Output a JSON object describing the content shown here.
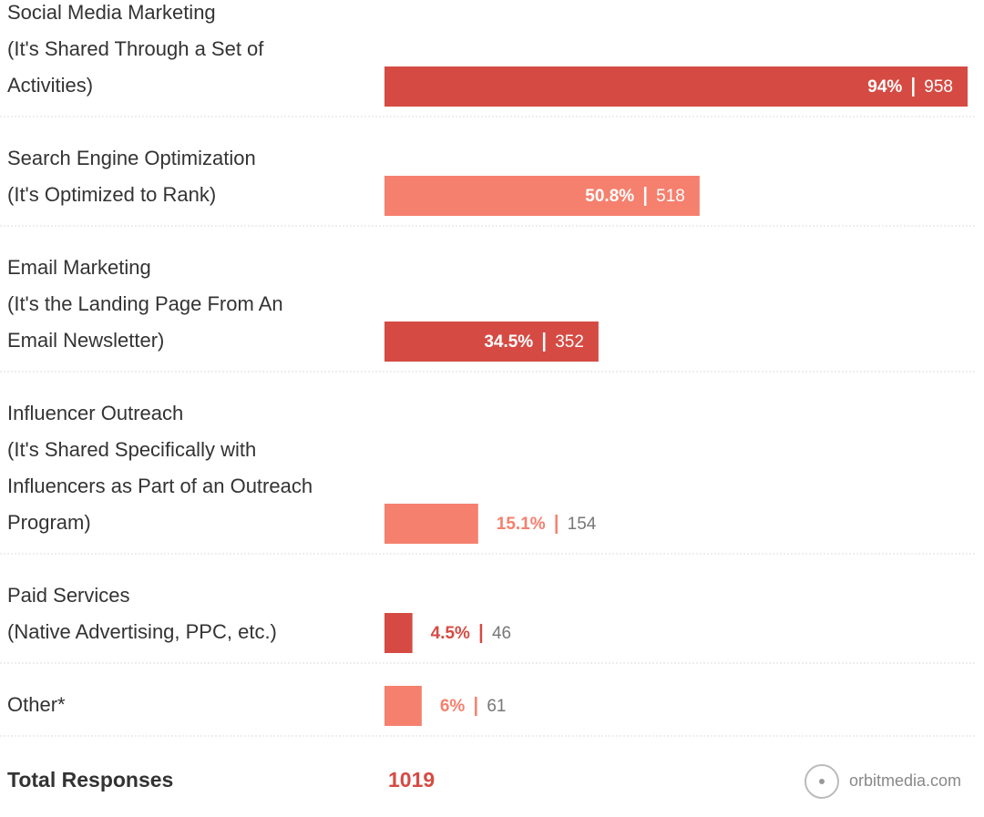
{
  "chart_data": {
    "type": "bar",
    "orientation": "horizontal",
    "categories": [
      [
        "Social Media Marketing",
        "(It's Shared Through a Set of",
        "Activities)"
      ],
      [
        "Search Engine Optimization",
        "(It's Optimized to Rank)"
      ],
      [
        "Email Marketing",
        "(It's the Landing Page From An",
        "Email Newsletter)"
      ],
      [
        "Influencer Outreach",
        "(It's Shared Specifically with",
        "Influencers as Part of an Outreach",
        "Program)"
      ],
      [
        "Paid Services",
        "(Native Advertising, PPC, etc.)"
      ],
      [
        "Other*"
      ]
    ],
    "values": [
      94,
      50.8,
      34.5,
      15.1,
      4.5,
      6
    ],
    "value_labels": [
      "94%",
      "50.8%",
      "34.5%",
      "15.1%",
      "4.5%",
      "6%"
    ],
    "counts": [
      958,
      518,
      352,
      154,
      46,
      61
    ],
    "colors": [
      "#d54b43",
      "#f5806e",
      "#d54b43",
      "#f5806e",
      "#d54b43",
      "#f5806e"
    ],
    "total_label": "Total Responses",
    "total": 1019,
    "source": "orbitmedia.com"
  }
}
